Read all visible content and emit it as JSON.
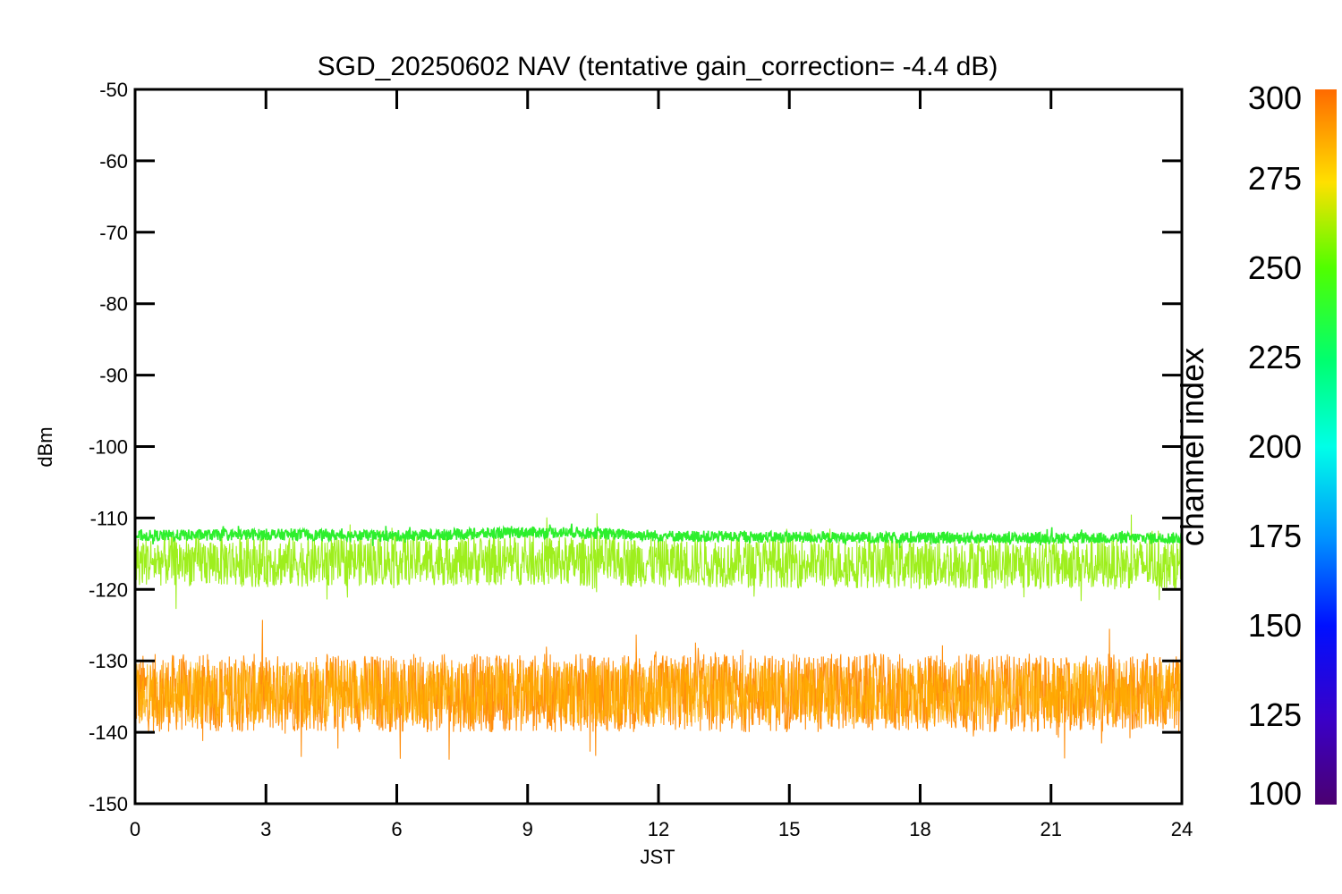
{
  "chart_data": {
    "type": "line",
    "title": "SGD_20250602 NAV (tentative gain_correction= -4.4 dB)",
    "xlabel": "JST",
    "ylabel": "dBm",
    "xlim": [
      0,
      24
    ],
    "ylim": [
      -150,
      -50
    ],
    "x_ticks": [
      0,
      3,
      6,
      9,
      12,
      15,
      18,
      21,
      24
    ],
    "y_ticks": [
      -50,
      -60,
      -70,
      -80,
      -90,
      -100,
      -110,
      -120,
      -130,
      -140,
      -150
    ],
    "grid": false,
    "series": [
      {
        "color": "#22ee22",
        "color_index": 235,
        "x": [
          0,
          3,
          6,
          9,
          10,
          12,
          15,
          18,
          21,
          24
        ],
        "y": [
          -112.5,
          -112.3,
          -112.5,
          -112,
          -112,
          -112.5,
          -112.7,
          -112.8,
          -112.8,
          -112.8
        ],
        "spread": 0.8
      },
      {
        "color": "#99ee11",
        "color_index": 255,
        "x": [
          0,
          3,
          6,
          9,
          12,
          15,
          18,
          21,
          24
        ],
        "y": [
          -116,
          -116.2,
          -116,
          -116,
          -116.2,
          -116.3,
          -116.4,
          -116.5,
          -116.5
        ],
        "spread": 3.5
      },
      {
        "color": "#ff8800",
        "color_index": 295,
        "x": [
          0,
          3,
          6,
          9,
          12,
          15,
          18,
          21,
          24
        ],
        "y": [
          -134.5,
          -134.5,
          -134.5,
          -134.5,
          -134.5,
          -134.5,
          -134.5,
          -134.5,
          -134.5
        ],
        "spread": 5.5
      }
    ],
    "colorbar": {
      "label": "channel index",
      "range": [
        100,
        300
      ],
      "ticks": [
        100,
        125,
        150,
        175,
        200,
        225,
        250,
        275,
        300
      ],
      "colormap": "rainbow"
    }
  }
}
